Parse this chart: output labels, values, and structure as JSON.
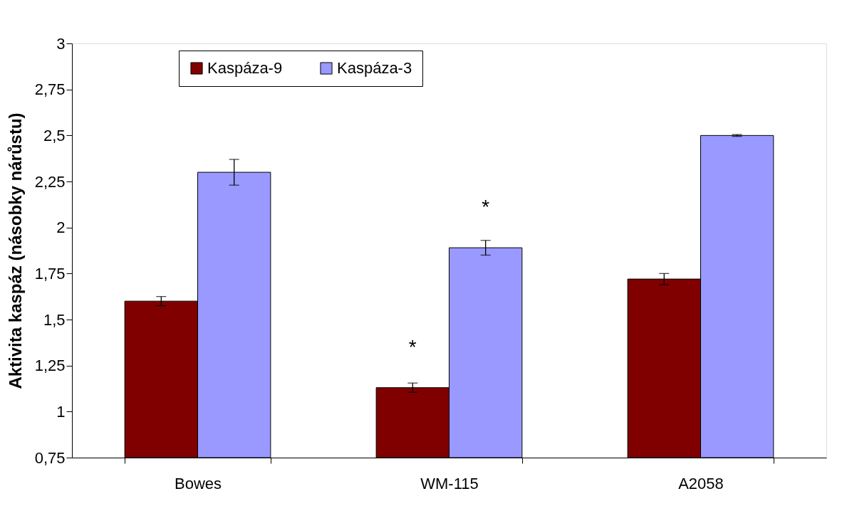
{
  "chart_data": {
    "type": "bar",
    "ylabel": "Aktivita kaspáz (násobky nárůstu)",
    "categories": [
      "Bowes",
      "WM-115",
      "A2058"
    ],
    "series": [
      {
        "name": "Kaspáza-9",
        "color": "#800000",
        "values": [
          1.6,
          1.13,
          1.72
        ],
        "errors": [
          0.025,
          0.025,
          0.03
        ]
      },
      {
        "name": "Kaspáza-3",
        "color": "#9999ff",
        "values": [
          2.3,
          1.89,
          2.5
        ],
        "errors": [
          0.07,
          0.04,
          0.005
        ]
      }
    ],
    "ylim": [
      0.75,
      3
    ],
    "yticks": [
      {
        "value": 0.75,
        "label": "0,75"
      },
      1,
      {
        "value": 1.25,
        "label": "1,25"
      },
      {
        "value": 1.5,
        "label": "1,5"
      },
      {
        "value": 1.75,
        "label": "1,75"
      },
      2,
      {
        "value": 2.25,
        "label": "2,25"
      },
      {
        "value": 2.5,
        "label": "2,5"
      },
      {
        "value": 2.75,
        "label": "2,75"
      },
      3
    ],
    "annotations": [
      {
        "text": "*",
        "x": "WM-115",
        "y": 1.13
      },
      {
        "text": "*",
        "x": "WM-115",
        "y": 1.89
      }
    ],
    "legend": "top",
    "grid": false
  }
}
